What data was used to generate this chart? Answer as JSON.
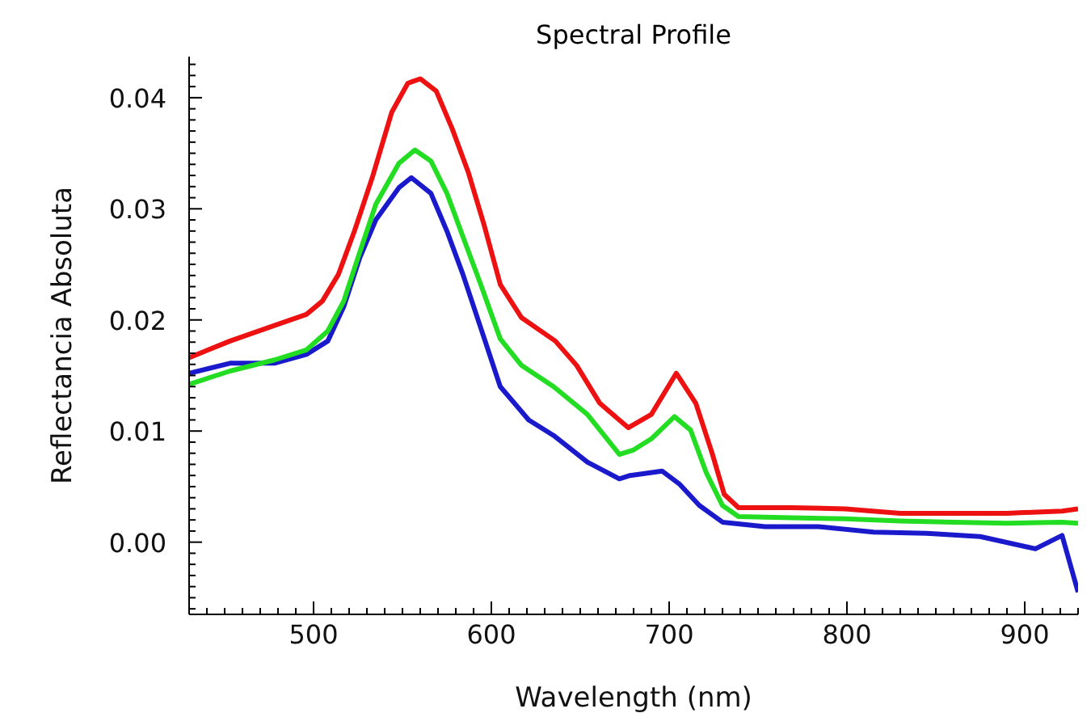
{
  "chart_data": {
    "type": "line",
    "title": "Spectral Profile",
    "xlabel": "Wavelength (nm)",
    "ylabel": "Reflectancia Absoluta",
    "xlim": [
      430,
      930
    ],
    "ylim": [
      -0.0065,
      0.0437
    ],
    "xticks": [
      {
        "value": 430,
        "label": null
      },
      {
        "value": 440,
        "label": null
      },
      {
        "value": 450,
        "label": null
      },
      {
        "value": 460,
        "label": null
      },
      {
        "value": 470,
        "label": null
      },
      {
        "value": 480,
        "label": null
      },
      {
        "value": 490,
        "label": null
      },
      500,
      {
        "value": 510,
        "label": null
      },
      {
        "value": 520,
        "label": null
      },
      {
        "value": 530,
        "label": null
      },
      {
        "value": 540,
        "label": null
      },
      {
        "value": 550,
        "label": null
      },
      {
        "value": 560,
        "label": null
      },
      {
        "value": 570,
        "label": null
      },
      {
        "value": 580,
        "label": null
      },
      {
        "value": 590,
        "label": null
      },
      600,
      {
        "value": 610,
        "label": null
      },
      {
        "value": 620,
        "label": null
      },
      {
        "value": 630,
        "label": null
      },
      {
        "value": 640,
        "label": null
      },
      {
        "value": 650,
        "label": null
      },
      {
        "value": 660,
        "label": null
      },
      {
        "value": 670,
        "label": null
      },
      {
        "value": 680,
        "label": null
      },
      {
        "value": 690,
        "label": null
      },
      700,
      {
        "value": 710,
        "label": null
      },
      {
        "value": 720,
        "label": null
      },
      {
        "value": 730,
        "label": null
      },
      {
        "value": 740,
        "label": null
      },
      {
        "value": 750,
        "label": null
      },
      {
        "value": 760,
        "label": null
      },
      {
        "value": 770,
        "label": null
      },
      {
        "value": 780,
        "label": null
      },
      {
        "value": 790,
        "label": null
      },
      800,
      {
        "value": 810,
        "label": null
      },
      {
        "value": 820,
        "label": null
      },
      {
        "value": 830,
        "label": null
      },
      {
        "value": 840,
        "label": null
      },
      {
        "value": 850,
        "label": null
      },
      {
        "value": 860,
        "label": null
      },
      {
        "value": 870,
        "label": null
      },
      {
        "value": 880,
        "label": null
      },
      {
        "value": 890,
        "label": null
      },
      900,
      {
        "value": 910,
        "label": null
      },
      {
        "value": 920,
        "label": null
      },
      {
        "value": 930,
        "label": null
      }
    ],
    "yticks": [
      {
        "value": -0.006,
        "label": null
      },
      {
        "value": -0.005,
        "label": null
      },
      {
        "value": -0.004,
        "label": null
      },
      {
        "value": -0.003,
        "label": null
      },
      {
        "value": -0.002,
        "label": null
      },
      {
        "value": -0.001,
        "label": null
      },
      {
        "value": 0,
        "label": "0.00"
      },
      {
        "value": 0.001,
        "label": null
      },
      {
        "value": 0.002,
        "label": null
      },
      {
        "value": 0.003,
        "label": null
      },
      {
        "value": 0.004,
        "label": null
      },
      {
        "value": 0.005,
        "label": null
      },
      {
        "value": 0.006,
        "label": null
      },
      {
        "value": 0.007,
        "label": null
      },
      {
        "value": 0.008,
        "label": null
      },
      {
        "value": 0.009,
        "label": null
      },
      0.01,
      {
        "value": 0.011,
        "label": null
      },
      {
        "value": 0.012,
        "label": null
      },
      {
        "value": 0.013,
        "label": null
      },
      {
        "value": 0.014,
        "label": null
      },
      {
        "value": 0.015,
        "label": null
      },
      {
        "value": 0.016,
        "label": null
      },
      {
        "value": 0.017,
        "label": null
      },
      {
        "value": 0.018,
        "label": null
      },
      {
        "value": 0.019,
        "label": null
      },
      0.02,
      {
        "value": 0.021,
        "label": null
      },
      {
        "value": 0.022,
        "label": null
      },
      {
        "value": 0.023,
        "label": null
      },
      {
        "value": 0.024,
        "label": null
      },
      {
        "value": 0.025,
        "label": null
      },
      {
        "value": 0.026,
        "label": null
      },
      {
        "value": 0.027,
        "label": null
      },
      {
        "value": 0.028,
        "label": null
      },
      {
        "value": 0.029,
        "label": null
      },
      0.03,
      {
        "value": 0.031,
        "label": null
      },
      {
        "value": 0.032,
        "label": null
      },
      {
        "value": 0.033,
        "label": null
      },
      {
        "value": 0.034,
        "label": null
      },
      {
        "value": 0.035,
        "label": null
      },
      {
        "value": 0.036,
        "label": null
      },
      {
        "value": 0.037,
        "label": null
      },
      {
        "value": 0.038,
        "label": null
      },
      {
        "value": 0.039,
        "label": null
      },
      0.04,
      {
        "value": 0.041,
        "label": null
      },
      {
        "value": 0.042,
        "label": null
      },
      {
        "value": 0.043,
        "label": null
      }
    ],
    "series": [
      {
        "color": "#1a1acc",
        "x": [
          430,
          453,
          478,
          496,
          508,
          517,
          526,
          535,
          548,
          555,
          566,
          575,
          584,
          594,
          605,
          621,
          635,
          654,
          672,
          678,
          696,
          706,
          717,
          730,
          754,
          784,
          815,
          845,
          875,
          906,
          921,
          930
        ],
        "values": [
          0.0152,
          0.0161,
          0.0161,
          0.0169,
          0.0181,
          0.0212,
          0.0256,
          0.029,
          0.0319,
          0.0328,
          0.0314,
          0.028,
          0.0241,
          0.0193,
          0.014,
          0.011,
          0.0096,
          0.0072,
          0.0057,
          0.006,
          0.0064,
          0.0052,
          0.0033,
          0.0018,
          0.0014,
          0.0014,
          0.0009,
          0.0008,
          0.0005,
          -0.0006,
          0.0006,
          -0.0045
        ]
      },
      {
        "color": "#22dd22",
        "x": [
          430,
          453,
          478,
          496,
          508,
          517,
          526,
          535,
          548,
          557,
          566,
          575,
          584,
          594,
          605,
          617,
          635,
          654,
          672,
          680,
          690,
          703,
          712,
          721,
          730,
          739,
          769,
          799,
          830,
          860,
          890,
          921,
          930
        ],
        "values": [
          0.0142,
          0.0154,
          0.0164,
          0.0173,
          0.019,
          0.0217,
          0.0261,
          0.0304,
          0.0341,
          0.0353,
          0.0343,
          0.0314,
          0.0275,
          0.0232,
          0.0183,
          0.0159,
          0.014,
          0.0115,
          0.0079,
          0.0083,
          0.0093,
          0.0113,
          0.0101,
          0.0062,
          0.0033,
          0.0023,
          0.0022,
          0.0021,
          0.0019,
          0.0018,
          0.0017,
          0.0018,
          0.0017
        ]
      },
      {
        "color": "#ee1111",
        "x": [
          430,
          453,
          478,
          496,
          505,
          514,
          523,
          533,
          544,
          553,
          560,
          569,
          578,
          587,
          596,
          605,
          617,
          636,
          648,
          661,
          677,
          690,
          704,
          715,
          724,
          731,
          739,
          769,
          799,
          830,
          860,
          890,
          921,
          930
        ],
        "values": [
          0.0166,
          0.0181,
          0.0195,
          0.0205,
          0.0217,
          0.0241,
          0.028,
          0.0328,
          0.0387,
          0.0413,
          0.0417,
          0.0406,
          0.0372,
          0.0333,
          0.0285,
          0.0232,
          0.0202,
          0.0181,
          0.0159,
          0.0125,
          0.0103,
          0.0115,
          0.0152,
          0.0125,
          0.0081,
          0.0043,
          0.0031,
          0.0031,
          0.003,
          0.0026,
          0.0026,
          0.0026,
          0.0028,
          0.003
        ]
      }
    ]
  }
}
